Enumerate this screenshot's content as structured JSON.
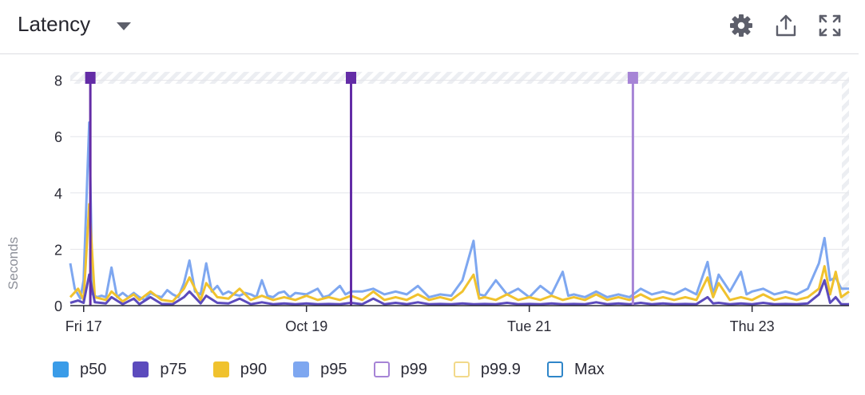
{
  "header": {
    "title": "Latency",
    "icons": [
      "gear-icon",
      "share-icon",
      "fullscreen-icon"
    ]
  },
  "chart_data": {
    "type": "line",
    "ylabel": "Seconds",
    "ylim": [
      0,
      8.3
    ],
    "yticks": [
      "0",
      "2",
      "4",
      "6",
      "8"
    ],
    "xticks": [
      {
        "label": "Fri 17",
        "at": 0.5
      },
      {
        "label": "Oct 19",
        "at": 2.5
      },
      {
        "label": "Tue 21",
        "at": 4.5
      },
      {
        "label": "Thu 23",
        "at": 6.5
      }
    ],
    "xlim": [
      0.38,
      7.37
    ],
    "events": [
      {
        "at": 0.56,
        "color": "#632ca6"
      },
      {
        "at": 2.9,
        "color": "#632ca6"
      },
      {
        "at": 5.43,
        "color": "#a684d6"
      }
    ],
    "grid": true,
    "legend_position": "bottom",
    "series": [
      {
        "name": "p50",
        "color": "#3a9ce8",
        "filled": true,
        "drawn": false
      },
      {
        "name": "p75",
        "color": "#5c4bbd",
        "filled": true,
        "drawn": true,
        "points": [
          [
            0.38,
            0.1
          ],
          [
            0.45,
            0.18
          ],
          [
            0.5,
            0.1
          ],
          [
            0.55,
            1.1
          ],
          [
            0.6,
            0.12
          ],
          [
            0.7,
            0.08
          ],
          [
            0.75,
            0.3
          ],
          [
            0.85,
            0.05
          ],
          [
            0.95,
            0.25
          ],
          [
            1.0,
            0.05
          ],
          [
            1.1,
            0.3
          ],
          [
            1.2,
            0.06
          ],
          [
            1.3,
            0.05
          ],
          [
            1.4,
            0.3
          ],
          [
            1.45,
            0.5
          ],
          [
            1.55,
            0.08
          ],
          [
            1.6,
            0.35
          ],
          [
            1.7,
            0.1
          ],
          [
            1.8,
            0.08
          ],
          [
            1.9,
            0.25
          ],
          [
            2.0,
            0.05
          ],
          [
            2.1,
            0.12
          ],
          [
            2.2,
            0.05
          ],
          [
            2.3,
            0.08
          ],
          [
            2.4,
            0.05
          ],
          [
            2.5,
            0.08
          ],
          [
            2.6,
            0.05
          ],
          [
            2.7,
            0.06
          ],
          [
            2.8,
            0.05
          ],
          [
            2.9,
            0.1
          ],
          [
            3.0,
            0.05
          ],
          [
            3.1,
            0.25
          ],
          [
            3.2,
            0.05
          ],
          [
            3.3,
            0.1
          ],
          [
            3.4,
            0.05
          ],
          [
            3.5,
            0.12
          ],
          [
            3.6,
            0.05
          ],
          [
            3.7,
            0.06
          ],
          [
            3.8,
            0.05
          ],
          [
            3.9,
            0.08
          ],
          [
            4.0,
            0.05
          ],
          [
            4.1,
            0.06
          ],
          [
            4.2,
            0.05
          ],
          [
            4.3,
            0.1
          ],
          [
            4.4,
            0.05
          ],
          [
            4.5,
            0.06
          ],
          [
            4.6,
            0.05
          ],
          [
            4.7,
            0.08
          ],
          [
            4.8,
            0.05
          ],
          [
            4.9,
            0.06
          ],
          [
            5.0,
            0.05
          ],
          [
            5.1,
            0.12
          ],
          [
            5.2,
            0.05
          ],
          [
            5.3,
            0.08
          ],
          [
            5.4,
            0.05
          ],
          [
            5.5,
            0.1
          ],
          [
            5.6,
            0.05
          ],
          [
            5.7,
            0.08
          ],
          [
            5.8,
            0.05
          ],
          [
            5.9,
            0.06
          ],
          [
            6.0,
            0.05
          ],
          [
            6.1,
            0.3
          ],
          [
            6.15,
            0.08
          ],
          [
            6.2,
            0.1
          ],
          [
            6.3,
            0.05
          ],
          [
            6.4,
            0.08
          ],
          [
            6.5,
            0.05
          ],
          [
            6.6,
            0.1
          ],
          [
            6.7,
            0.05
          ],
          [
            6.8,
            0.06
          ],
          [
            6.9,
            0.05
          ],
          [
            7.0,
            0.08
          ],
          [
            7.1,
            0.4
          ],
          [
            7.15,
            0.9
          ],
          [
            7.2,
            0.1
          ],
          [
            7.25,
            0.3
          ],
          [
            7.3,
            0.05
          ],
          [
            7.37,
            0.05
          ]
        ]
      },
      {
        "name": "p90",
        "color": "#f0c22e",
        "filled": true,
        "drawn": true,
        "points": [
          [
            0.38,
            0.3
          ],
          [
            0.45,
            0.6
          ],
          [
            0.5,
            0.2
          ],
          [
            0.55,
            3.6
          ],
          [
            0.6,
            0.3
          ],
          [
            0.7,
            0.2
          ],
          [
            0.75,
            0.5
          ],
          [
            0.85,
            0.15
          ],
          [
            0.95,
            0.4
          ],
          [
            1.0,
            0.2
          ],
          [
            1.1,
            0.5
          ],
          [
            1.2,
            0.2
          ],
          [
            1.3,
            0.15
          ],
          [
            1.4,
            0.6
          ],
          [
            1.45,
            1.0
          ],
          [
            1.55,
            0.2
          ],
          [
            1.6,
            0.8
          ],
          [
            1.7,
            0.3
          ],
          [
            1.8,
            0.25
          ],
          [
            1.9,
            0.6
          ],
          [
            2.0,
            0.2
          ],
          [
            2.1,
            0.35
          ],
          [
            2.2,
            0.2
          ],
          [
            2.3,
            0.3
          ],
          [
            2.4,
            0.2
          ],
          [
            2.5,
            0.35
          ],
          [
            2.6,
            0.2
          ],
          [
            2.7,
            0.3
          ],
          [
            2.8,
            0.2
          ],
          [
            2.9,
            0.35
          ],
          [
            3.0,
            0.2
          ],
          [
            3.1,
            0.5
          ],
          [
            3.2,
            0.2
          ],
          [
            3.3,
            0.3
          ],
          [
            3.4,
            0.2
          ],
          [
            3.5,
            0.4
          ],
          [
            3.6,
            0.2
          ],
          [
            3.7,
            0.3
          ],
          [
            3.8,
            0.2
          ],
          [
            3.9,
            0.5
          ],
          [
            4.0,
            1.1
          ],
          [
            4.05,
            0.25
          ],
          [
            4.1,
            0.3
          ],
          [
            4.2,
            0.2
          ],
          [
            4.3,
            0.4
          ],
          [
            4.4,
            0.2
          ],
          [
            4.5,
            0.3
          ],
          [
            4.6,
            0.2
          ],
          [
            4.7,
            0.35
          ],
          [
            4.8,
            0.2
          ],
          [
            4.9,
            0.3
          ],
          [
            5.0,
            0.2
          ],
          [
            5.1,
            0.4
          ],
          [
            5.2,
            0.2
          ],
          [
            5.3,
            0.3
          ],
          [
            5.4,
            0.2
          ],
          [
            5.5,
            0.4
          ],
          [
            5.6,
            0.2
          ],
          [
            5.7,
            0.3
          ],
          [
            5.8,
            0.2
          ],
          [
            5.9,
            0.3
          ],
          [
            6.0,
            0.2
          ],
          [
            6.1,
            1.0
          ],
          [
            6.15,
            0.3
          ],
          [
            6.2,
            0.8
          ],
          [
            6.3,
            0.2
          ],
          [
            6.4,
            0.3
          ],
          [
            6.5,
            0.2
          ],
          [
            6.6,
            0.4
          ],
          [
            6.7,
            0.2
          ],
          [
            6.8,
            0.3
          ],
          [
            6.9,
            0.2
          ],
          [
            7.0,
            0.3
          ],
          [
            7.1,
            0.6
          ],
          [
            7.15,
            1.4
          ],
          [
            7.2,
            0.4
          ],
          [
            7.25,
            1.2
          ],
          [
            7.3,
            0.3
          ],
          [
            7.37,
            0.5
          ]
        ]
      },
      {
        "name": "p95",
        "color": "#7ea7f0",
        "filled": true,
        "drawn": true,
        "points": [
          [
            0.38,
            1.5
          ],
          [
            0.42,
            0.6
          ],
          [
            0.47,
            0.25
          ],
          [
            0.5,
            0.9
          ],
          [
            0.55,
            6.5
          ],
          [
            0.58,
            0.4
          ],
          [
            0.62,
            0.3
          ],
          [
            0.66,
            0.35
          ],
          [
            0.7,
            0.3
          ],
          [
            0.75,
            1.35
          ],
          [
            0.8,
            0.3
          ],
          [
            0.85,
            0.45
          ],
          [
            0.9,
            0.3
          ],
          [
            0.95,
            0.45
          ],
          [
            1.0,
            0.3
          ],
          [
            1.05,
            0.2
          ],
          [
            1.1,
            0.45
          ],
          [
            1.15,
            0.35
          ],
          [
            1.2,
            0.3
          ],
          [
            1.25,
            0.55
          ],
          [
            1.3,
            0.4
          ],
          [
            1.35,
            0.3
          ],
          [
            1.4,
            0.8
          ],
          [
            1.45,
            1.6
          ],
          [
            1.5,
            0.5
          ],
          [
            1.55,
            0.4
          ],
          [
            1.6,
            1.5
          ],
          [
            1.65,
            0.5
          ],
          [
            1.7,
            0.7
          ],
          [
            1.75,
            0.4
          ],
          [
            1.8,
            0.5
          ],
          [
            1.85,
            0.4
          ],
          [
            1.9,
            0.35
          ],
          [
            1.95,
            0.45
          ],
          [
            2.0,
            0.4
          ],
          [
            2.05,
            0.3
          ],
          [
            2.1,
            0.9
          ],
          [
            2.15,
            0.35
          ],
          [
            2.2,
            0.3
          ],
          [
            2.25,
            0.45
          ],
          [
            2.3,
            0.5
          ],
          [
            2.35,
            0.3
          ],
          [
            2.4,
            0.45
          ],
          [
            2.5,
            0.4
          ],
          [
            2.6,
            0.6
          ],
          [
            2.65,
            0.3
          ],
          [
            2.7,
            0.35
          ],
          [
            2.8,
            0.7
          ],
          [
            2.85,
            0.4
          ],
          [
            2.9,
            0.5
          ],
          [
            3.0,
            0.5
          ],
          [
            3.1,
            0.6
          ],
          [
            3.2,
            0.4
          ],
          [
            3.3,
            0.5
          ],
          [
            3.4,
            0.4
          ],
          [
            3.5,
            0.7
          ],
          [
            3.6,
            0.3
          ],
          [
            3.7,
            0.4
          ],
          [
            3.8,
            0.35
          ],
          [
            3.9,
            0.9
          ],
          [
            4.0,
            2.3
          ],
          [
            4.05,
            0.4
          ],
          [
            4.1,
            0.35
          ],
          [
            4.2,
            0.9
          ],
          [
            4.3,
            0.4
          ],
          [
            4.4,
            0.6
          ],
          [
            4.5,
            0.3
          ],
          [
            4.6,
            0.7
          ],
          [
            4.7,
            0.4
          ],
          [
            4.8,
            1.2
          ],
          [
            4.85,
            0.35
          ],
          [
            4.9,
            0.4
          ],
          [
            5.0,
            0.3
          ],
          [
            5.1,
            0.5
          ],
          [
            5.2,
            0.3
          ],
          [
            5.3,
            0.4
          ],
          [
            5.4,
            0.3
          ],
          [
            5.5,
            0.6
          ],
          [
            5.6,
            0.4
          ],
          [
            5.7,
            0.5
          ],
          [
            5.8,
            0.4
          ],
          [
            5.9,
            0.6
          ],
          [
            6.0,
            0.4
          ],
          [
            6.1,
            1.55
          ],
          [
            6.15,
            0.4
          ],
          [
            6.2,
            1.1
          ],
          [
            6.3,
            0.5
          ],
          [
            6.4,
            1.2
          ],
          [
            6.45,
            0.4
          ],
          [
            6.5,
            0.5
          ],
          [
            6.6,
            0.6
          ],
          [
            6.7,
            0.4
          ],
          [
            6.8,
            0.5
          ],
          [
            6.9,
            0.4
          ],
          [
            7.0,
            0.6
          ],
          [
            7.1,
            1.5
          ],
          [
            7.15,
            2.4
          ],
          [
            7.2,
            0.9
          ],
          [
            7.25,
            1.0
          ],
          [
            7.3,
            0.6
          ],
          [
            7.37,
            0.6
          ]
        ]
      },
      {
        "name": "p99",
        "color": "#a684d6",
        "filled": false,
        "drawn": false
      },
      {
        "name": "p99.9",
        "color": "#f2d98a",
        "filled": false,
        "drawn": false
      },
      {
        "name": "Max",
        "color": "#2f86c9",
        "filled": false,
        "drawn": false
      }
    ]
  }
}
